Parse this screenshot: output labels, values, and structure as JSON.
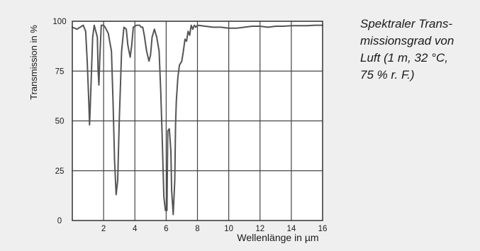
{
  "chart_data": {
    "type": "line",
    "title": "",
    "xlabel": "Wellenlänge in µm",
    "ylabel": "Transmission in %",
    "xlim": [
      0,
      16
    ],
    "ylim": [
      0,
      100
    ],
    "x_ticks": [
      2,
      4,
      6,
      8,
      10,
      12,
      14,
      16
    ],
    "y_ticks": [
      0,
      25,
      50,
      75,
      100
    ],
    "grid": true,
    "series": [
      {
        "color": "#555555",
        "x": [
          0.0,
          0.3,
          0.5,
          0.7,
          0.85,
          0.95,
          1.05,
          1.1,
          1.15,
          1.3,
          1.4,
          1.6,
          1.65,
          1.7,
          1.75,
          1.85,
          2.0,
          2.1,
          2.3,
          2.5,
          2.6,
          2.7,
          2.8,
          2.9,
          3.0,
          3.15,
          3.3,
          3.45,
          3.55,
          3.7,
          3.8,
          3.9,
          4.1,
          4.3,
          4.4,
          4.5,
          4.6,
          4.75,
          4.9,
          5.0,
          5.1,
          5.25,
          5.4,
          5.55,
          5.65,
          5.75,
          5.85,
          5.95,
          6.05,
          6.1,
          6.2,
          6.3,
          6.35,
          6.45,
          6.55,
          6.6,
          6.65,
          6.75,
          6.85,
          7.0,
          7.1,
          7.2,
          7.3,
          7.4,
          7.5,
          7.6,
          7.7,
          7.8,
          7.9,
          8.0,
          8.5,
          9.0,
          9.5,
          10.0,
          10.5,
          11.0,
          11.5,
          12.0,
          12.5,
          13.0,
          13.5,
          14.0,
          14.5,
          15.0,
          15.5,
          16.0
        ],
        "y": [
          97,
          96,
          97,
          98,
          95,
          80,
          60,
          48,
          58,
          92,
          98,
          92,
          75,
          68,
          80,
          98,
          98,
          97,
          94,
          85,
          60,
          30,
          13,
          20,
          50,
          85,
          97,
          96,
          88,
          82,
          88,
          97,
          98,
          98,
          97,
          97,
          93,
          85,
          80,
          83,
          92,
          96,
          92,
          85,
          65,
          40,
          12,
          5,
          5,
          45,
          46,
          35,
          15,
          3,
          20,
          48,
          60,
          72,
          78,
          80,
          85,
          91,
          90,
          95,
          93,
          98,
          96,
          98,
          97,
          98,
          97.5,
          97,
          97,
          96.5,
          96.5,
          97,
          97.5,
          97.5,
          97,
          97.5,
          97.5,
          97.8,
          97.8,
          97.8,
          98,
          98
        ]
      }
    ]
  },
  "caption": {
    "line1": "Spektraler Trans-",
    "line2": "missionsgrad von",
    "line3": "Luft (1 m, 32 °C,",
    "line4": "75 % r. F.)"
  }
}
